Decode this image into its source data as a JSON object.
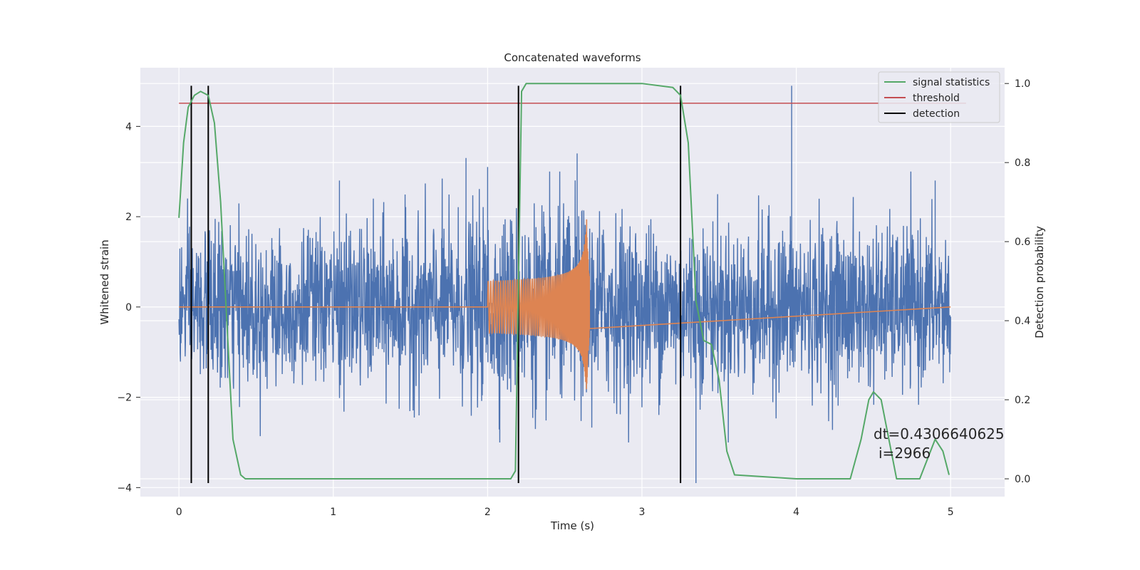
{
  "chart_data": {
    "type": "line",
    "title": "Concatenated waveforms",
    "xlabel": "Time (s)",
    "ylabel": "Whitened strain",
    "y2label": "Detection probability",
    "xlim": [
      -0.25,
      5.35
    ],
    "ylim": [
      -4.2,
      5.3
    ],
    "y2lim": [
      -0.045,
      1.04
    ],
    "x_ticks": [
      0,
      1,
      2,
      3,
      4,
      5
    ],
    "y_ticks": [
      -4,
      -2,
      0,
      2,
      4
    ],
    "y2_ticks": [
      0.0,
      0.2,
      0.4,
      0.6,
      0.8,
      1.0
    ],
    "grid": true,
    "legend_position": "top-right",
    "colors": {
      "strain": "#4c72b0",
      "template": "#dd8452",
      "statistics": "#55a868",
      "threshold": "#c44e52",
      "detection": "#000000",
      "background": "#eaeaf2",
      "grid": "#ffffff"
    },
    "series": [
      {
        "name": "",
        "kind": "noise",
        "axis": "left",
        "x_range": [
          0,
          5
        ],
        "envelope_pos": [
          [
            0.0,
            1.9
          ],
          [
            0.5,
            2.1
          ],
          [
            1.0,
            2.0
          ],
          [
            1.5,
            2.2
          ],
          [
            2.0,
            2.4
          ],
          [
            2.5,
            2.6
          ],
          [
            3.0,
            2.2
          ],
          [
            3.5,
            2.1
          ],
          [
            4.0,
            2.2
          ],
          [
            4.5,
            2.1
          ],
          [
            5.0,
            2.0
          ]
        ],
        "spikes": [
          [
            1.04,
            2.8
          ],
          [
            1.86,
            3.3
          ],
          [
            2.0,
            3.1
          ],
          [
            2.58,
            3.4
          ],
          [
            3.25,
            2.1
          ],
          [
            3.35,
            -3.9
          ],
          [
            3.97,
            4.9
          ],
          [
            4.9,
            2.8
          ]
        ]
      },
      {
        "name": "",
        "kind": "chirp",
        "axis": "left",
        "x_range": [
          2.0,
          2.66
        ],
        "amplitude_start": 0.45,
        "amplitude_peak": 2.15,
        "peak_time": 2.64
      },
      {
        "name": "signal statistics",
        "axis": "right",
        "x": [
          0.0,
          0.03,
          0.06,
          0.1,
          0.14,
          0.19,
          0.23,
          0.27,
          0.31,
          0.35,
          0.4,
          0.43,
          0.5,
          1.0,
          1.5,
          2.0,
          2.15,
          2.18,
          2.2,
          2.22,
          2.25,
          2.5,
          3.0,
          3.2,
          3.25,
          3.3,
          3.35,
          3.4,
          3.45,
          3.5,
          3.55,
          3.6,
          4.0,
          4.35,
          4.42,
          4.47,
          4.5,
          4.55,
          4.6,
          4.65,
          4.8,
          4.85,
          4.9,
          4.95,
          4.99
        ],
        "y": [
          0.66,
          0.85,
          0.94,
          0.97,
          0.98,
          0.97,
          0.9,
          0.7,
          0.4,
          0.1,
          0.01,
          0.0,
          0.0,
          0.0,
          0.0,
          0.0,
          0.0,
          0.02,
          0.5,
          0.98,
          1.0,
          1.0,
          1.0,
          0.99,
          0.97,
          0.85,
          0.45,
          0.35,
          0.34,
          0.25,
          0.07,
          0.01,
          0.0,
          0.0,
          0.1,
          0.2,
          0.22,
          0.2,
          0.1,
          0.0,
          0.0,
          0.05,
          0.1,
          0.07,
          0.01
        ]
      },
      {
        "name": "threshold",
        "axis": "right",
        "x": [
          0,
          5.1
        ],
        "y": [
          0.95,
          0.95
        ]
      },
      {
        "name": "detection",
        "axis": "left",
        "x": [
          0.08,
          0.19,
          2.2,
          3.25
        ],
        "y_range": [
          -3.9,
          4.9
        ]
      }
    ],
    "annotation": {
      "line1": "dt=0.4306640625",
      "line2": "i=2966",
      "x": 4.5,
      "y": 0.1
    }
  }
}
